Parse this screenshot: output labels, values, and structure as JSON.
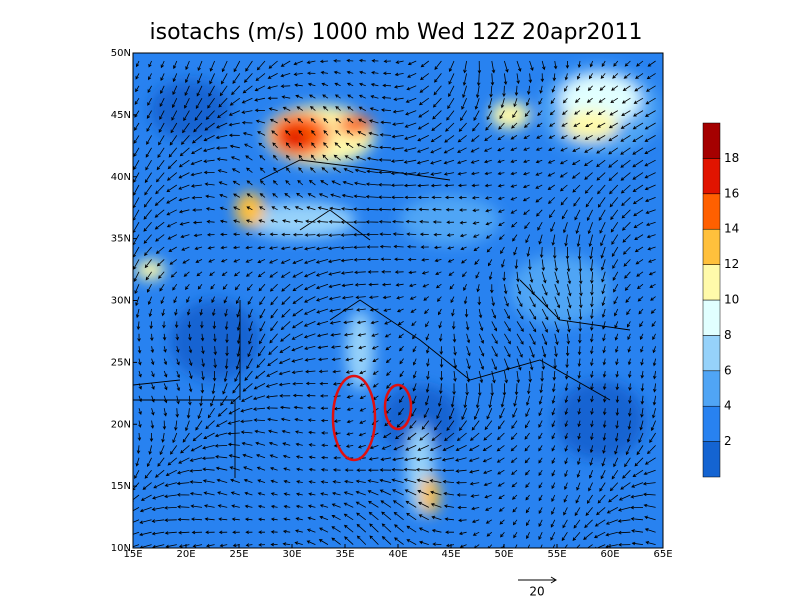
{
  "title": "isotachs (m/s) 1000 mb Wed 12Z 20apr2011",
  "map": {
    "lon_labels": [
      "15E",
      "20E",
      "25E",
      "30E",
      "35E",
      "40E",
      "45E",
      "50E",
      "55E",
      "60E",
      "65E"
    ],
    "lat_labels": [
      "10N",
      "15N",
      "20N",
      "25N",
      "30N",
      "35N",
      "40N",
      "45N",
      "50N"
    ]
  },
  "colorbar": {
    "colors": [
      "#1464d2",
      "#2882f0",
      "#50a5f5",
      "#96d2fa",
      "#e1ffff",
      "#fffaaa",
      "#ffc03c",
      "#ff6000",
      "#e11400",
      "#a50000"
    ],
    "labels": [
      2,
      4,
      6,
      8,
      10,
      12,
      14,
      16,
      18
    ]
  },
  "reference_vector": {
    "label": "20"
  }
}
